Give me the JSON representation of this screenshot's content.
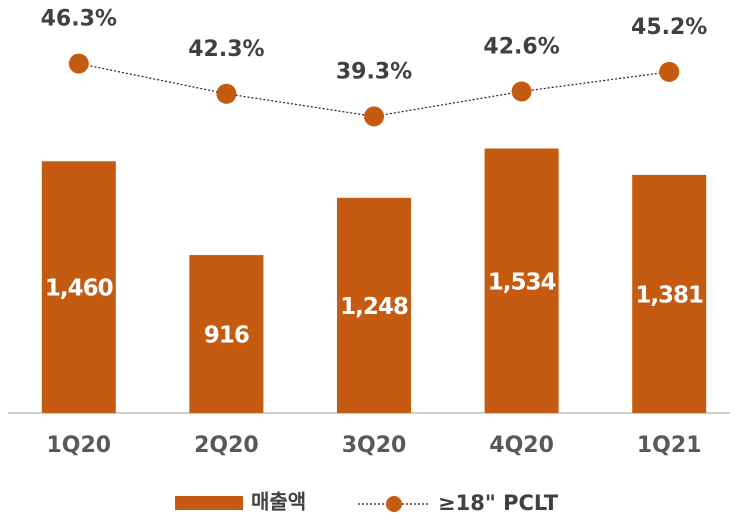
{
  "chart_data": {
    "type": "bar",
    "categories": [
      "1Q20",
      "2Q20",
      "3Q20",
      "4Q20",
      "1Q21"
    ],
    "series": [
      {
        "name": "매출액",
        "type": "bar",
        "color": "#c55a11",
        "values": [
          1460,
          916,
          1248,
          1534,
          1381
        ],
        "value_labels": [
          "1,460",
          "916",
          "1,248",
          "1,534",
          "1,381"
        ]
      },
      {
        "name": "≥18\" PCLT",
        "type": "line",
        "axis": "y2",
        "color": "#c55a11",
        "values": [
          46.3,
          42.3,
          39.3,
          42.6,
          45.2
        ],
        "value_labels": [
          "46.3%",
          "42.3%",
          "39.3%",
          "42.6%",
          "45.2%"
        ]
      }
    ],
    "ylim": [
      0,
      2320
    ],
    "y2lim": [
      0,
      53
    ],
    "legend": "bottom"
  }
}
